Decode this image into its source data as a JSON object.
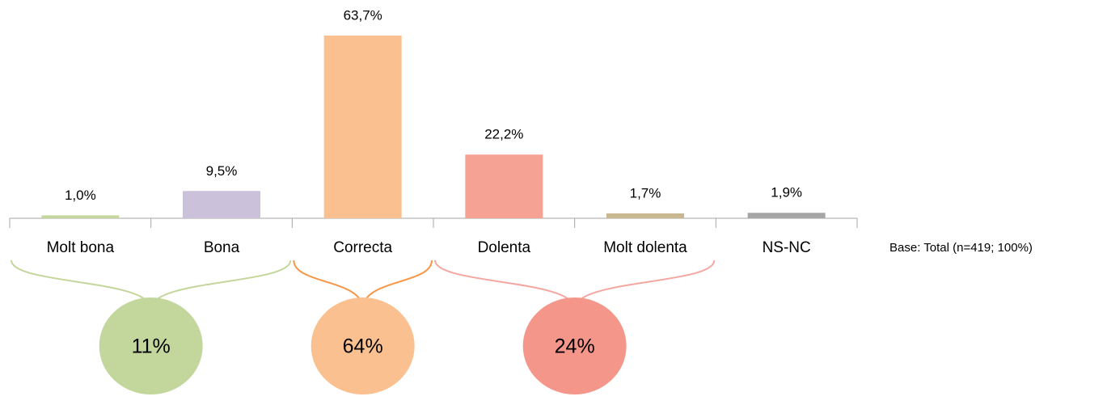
{
  "chart_data": {
    "type": "bar",
    "categories": [
      "Molt bona",
      "Bona",
      "Correcta",
      "Dolenta",
      "Molt dolenta",
      "NS-NC"
    ],
    "values": [
      1.0,
      9.5,
      63.7,
      22.2,
      1.7,
      1.9
    ],
    "value_labels": [
      "1,0%",
      "9,5%",
      "63,7%",
      "22,2%",
      "1,7%",
      "1,9%"
    ],
    "colors": [
      "#c3d69b",
      "#ccc1da",
      "#fac090",
      "#f5a194",
      "#c9b88f",
      "#a6a6a6"
    ],
    "groups": [
      {
        "members": [
          "Molt bona",
          "Bona"
        ],
        "value": 11,
        "label": "11%",
        "color": "#c3d69b",
        "brace_color": "#c3d69b"
      },
      {
        "members": [
          "Correcta"
        ],
        "value": 64,
        "label": "64%",
        "color": "#fac090",
        "brace_color": "#f79646"
      },
      {
        "members": [
          "Dolenta",
          "Molt dolenta"
        ],
        "value": 24,
        "label": "24%",
        "color": "#f4978a",
        "brace_color": "#f4a7a0"
      }
    ],
    "note": "Base: Total (n=419; 100%)"
  }
}
